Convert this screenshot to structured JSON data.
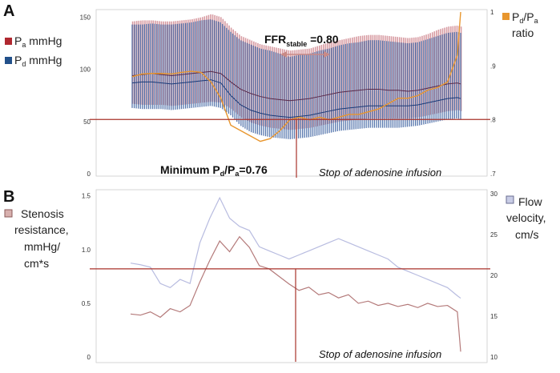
{
  "chart_data": [
    {
      "panel": "A",
      "type": "line",
      "legend_left": [
        {
          "name": "Pa",
          "subscript": "a",
          "base": "P",
          "unit": " mmHg",
          "color": "#b02830"
        },
        {
          "name": "Pd",
          "subscript": "d",
          "base": "P",
          "unit": " mmHg",
          "color": "#22508a"
        }
      ],
      "legend_right": {
        "line1_base": "P",
        "line1_sub1": "d",
        "line1_mid": "/P",
        "line1_sub2": "a",
        "line2": "ratio",
        "color": "#e8962e"
      },
      "y_left": {
        "range": [
          0,
          155
        ],
        "ticks": [
          "0",
          "50",
          "100",
          "150"
        ],
        "tick_values": [
          0,
          50,
          100,
          150
        ]
      },
      "y_right": {
        "range": [
          0.7,
          1.0
        ],
        "ticks": [
          ".7",
          ".8",
          ".9",
          "1"
        ],
        "tick_values": [
          0.7,
          0.8,
          0.9,
          1.0
        ]
      },
      "x": [
        0,
        3,
        6,
        9,
        12,
        15,
        18,
        21,
        24,
        27,
        30,
        33,
        36,
        39,
        42,
        45,
        48,
        51,
        54,
        57,
        60,
        63,
        66,
        69,
        72,
        75,
        78,
        81,
        84,
        87,
        90,
        93,
        96,
        99,
        100
      ],
      "series": [
        {
          "name": "Pa systolic",
          "values": [
            146,
            147,
            147,
            146,
            146,
            147,
            148,
            150,
            153,
            150,
            140,
            132,
            128,
            124,
            122,
            120,
            118,
            119,
            120,
            123,
            126,
            128,
            130,
            132,
            133,
            133,
            132,
            131,
            130,
            131,
            134,
            138,
            141,
            142,
            141
          ]
        },
        {
          "name": "Pd systolic",
          "values": [
            143,
            143,
            144,
            143,
            143,
            144,
            145,
            147,
            148,
            145,
            136,
            128,
            124,
            120,
            118,
            115,
            112,
            114,
            115,
            118,
            120,
            123,
            125,
            126,
            128,
            128,
            127,
            126,
            125,
            126,
            129,
            132,
            135,
            136,
            135
          ]
        },
        {
          "name": "Pa mean",
          "values": [
            94,
            95,
            96,
            95,
            94,
            95,
            96,
            97,
            98,
            96,
            88,
            81,
            77,
            74,
            72,
            71,
            70,
            71,
            72,
            74,
            76,
            78,
            79,
            80,
            81,
            81,
            80,
            80,
            79,
            80,
            82,
            84,
            86,
            87,
            86
          ]
        },
        {
          "name": "Pd mean",
          "values": [
            87,
            88,
            88,
            87,
            86,
            87,
            88,
            89,
            90,
            87,
            75,
            66,
            61,
            58,
            56,
            55,
            54,
            55,
            56,
            58,
            60,
            62,
            63,
            64,
            65,
            65,
            65,
            65,
            65,
            66,
            68,
            70,
            72,
            73,
            72
          ]
        },
        {
          "name": "Pa diastolic",
          "values": [
            67,
            66,
            66,
            66,
            65,
            66,
            67,
            68,
            69,
            68,
            62,
            54,
            49,
            46,
            44,
            43,
            42,
            43,
            44,
            46,
            48,
            50,
            51,
            52,
            53,
            53,
            53,
            53,
            53,
            54,
            56,
            58,
            60,
            61,
            60
          ]
        },
        {
          "name": "Pd diastolic",
          "values": [
            63,
            62,
            62,
            62,
            61,
            62,
            63,
            64,
            65,
            63,
            56,
            46,
            40,
            37,
            35,
            34,
            33,
            34,
            35,
            37,
            39,
            41,
            42,
            43,
            44,
            44,
            44,
            44,
            45,
            46,
            48,
            50,
            52,
            53,
            52
          ]
        },
        {
          "name": "Pd/Pa ratio",
          "axis": "right",
          "values": [
            0.88,
            0.885,
            0.886,
            0.886,
            0.885,
            0.888,
            0.89,
            0.888,
            0.87,
            0.84,
            0.79,
            0.78,
            0.77,
            0.76,
            0.765,
            0.78,
            0.8,
            0.805,
            0.8,
            0.805,
            0.8,
            0.805,
            0.81,
            0.81,
            0.815,
            0.82,
            0.83,
            0.84,
            0.84,
            0.845,
            0.855,
            0.86,
            0.87,
            0.92,
            1.0
          ]
        }
      ],
      "reference_line_y": 52,
      "event_x": 50,
      "annotations": {
        "ffr_base": "FFR",
        "ffr_sub": "stable",
        "ffr_value": " =0.80",
        "minimum_a": "Minimum P",
        "minimum_sub1": "d",
        "minimum_b": "/P",
        "minimum_sub2": "a",
        "minimum_value": "=0.76",
        "stop": "Stop of adenosine infusion"
      }
    },
    {
      "panel": "B",
      "type": "line",
      "legend_left": {
        "lines": [
          "Stenosis",
          "resistance,",
          "mmHg/",
          "cm*s"
        ],
        "color": "#d8b0ae"
      },
      "legend_right": {
        "lines": [
          "Flow",
          "velocity,",
          "cm/s"
        ],
        "color": "#c8cce6"
      },
      "y_left": {
        "range": [
          0,
          1.55
        ],
        "ticks": [
          "0",
          "0.5",
          "1.0",
          "1.5"
        ],
        "tick_values": [
          0,
          0.5,
          1.0,
          1.5
        ]
      },
      "y_right": {
        "range": [
          10,
          30
        ],
        "ticks": [
          "10",
          "15",
          "20",
          "25",
          "30"
        ],
        "tick_values": [
          10,
          15,
          20,
          25,
          30
        ]
      },
      "x": [
        0,
        3,
        6,
        9,
        12,
        15,
        18,
        21,
        24,
        27,
        30,
        33,
        36,
        39,
        42,
        45,
        48,
        51,
        54,
        57,
        60,
        63,
        66,
        69,
        72,
        75,
        78,
        81,
        84,
        87,
        90,
        93,
        96,
        99,
        100
      ],
      "series": [
        {
          "name": "Stenosis resistance",
          "axis": "left",
          "values": [
            0.4,
            0.39,
            0.42,
            0.37,
            0.45,
            0.42,
            0.48,
            0.7,
            0.9,
            1.08,
            0.98,
            1.12,
            1.02,
            0.85,
            0.82,
            0.75,
            0.68,
            0.62,
            0.65,
            0.58,
            0.6,
            0.55,
            0.58,
            0.5,
            0.52,
            0.48,
            0.5,
            0.47,
            0.49,
            0.46,
            0.5,
            0.47,
            0.48,
            0.42,
            0.05
          ]
        },
        {
          "name": "Flow velocity",
          "axis": "right",
          "values": [
            21.5,
            21.3,
            21.0,
            19.0,
            18.5,
            19.5,
            19.0,
            24.0,
            27.0,
            29.5,
            27.0,
            26.0,
            25.5,
            23.5,
            23.0,
            22.5,
            22.0,
            22.5,
            23.0,
            23.5,
            24.0,
            24.5,
            24.0,
            23.5,
            23.0,
            22.5,
            22.0,
            21.0,
            20.5,
            20.0,
            19.5,
            19.0,
            18.5,
            17.5,
            17.2
          ]
        }
      ],
      "reference_line_y_right": 20.8,
      "event_x": 50,
      "annotations": {
        "stop": "Stop of adenosine infusion"
      }
    }
  ],
  "panel_labels": {
    "a": "A",
    "b": "B"
  }
}
